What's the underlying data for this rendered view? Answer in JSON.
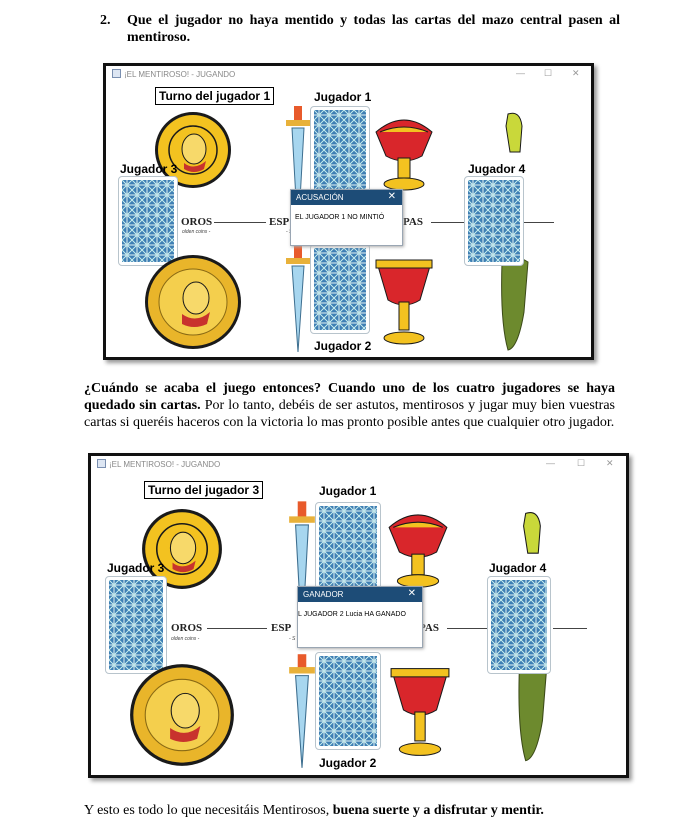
{
  "doc": {
    "step_number": "2.",
    "step_text": "Que el jugador no haya mentido y todas las cartas del mazo central pasen al mentiroso.",
    "question_bold": "¿Cuándo se acaba el juego entonces?",
    "answer_bold": "Cuando uno de los cuatro jugadores se haya quedado sin cartas.",
    "answer_rest": " Por lo tanto, debéis de ser astutos, mentirosos y jugar muy bien vuestras cartas si queréis haceros con la victoria lo mas pronto posible antes que cualquier otro jugador.",
    "closing_plain": "Y esto es todo lo que necesitáis Mentirosos, ",
    "closing_bold": "buena suerte y a disfrutar y mentir."
  },
  "window_common": {
    "title": "¡EL MENTIROSO! - JUGANDO",
    "minimize": "—",
    "maximize": "☐",
    "close": "✕",
    "player1": "Jugador 1",
    "player2": "Jugador 2",
    "player3": "Jugador 3",
    "player4": "Jugador 4",
    "legend_oros": "OROS",
    "legend_espadas": "ESP",
    "legend_copas": "PAS",
    "sub_oros": "olden coins -",
    "sub_espadas": "- S"
  },
  "screenshot1": {
    "turn": "Turno del jugador 1",
    "dialog_title": "ACUSACIÓN",
    "dialog_close": "✕",
    "dialog_message": "EL JUGADOR 1 NO MINTIÓ"
  },
  "screenshot2": {
    "turn": "Turno del jugador 3",
    "dialog_title": "GANADOR",
    "dialog_close": "✕",
    "dialog_message": "L JUGADOR 2 Lucia HA GANADO"
  },
  "colors": {
    "dialog_header": "#1d4c77",
    "card_back": "#3f7fb4",
    "gold": "#f3c220",
    "cup_red": "#d9262b",
    "club_green": "#6d8a2e"
  }
}
